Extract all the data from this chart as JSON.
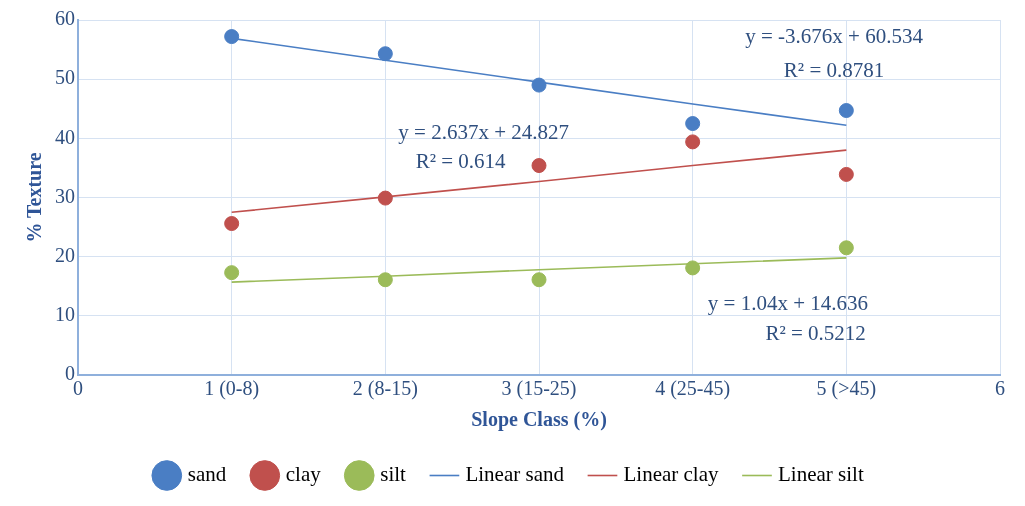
{
  "chart_data": {
    "type": "scatter",
    "xlabel": "Slope Class (%)",
    "ylabel": "% Texture",
    "xlim": [
      0,
      6
    ],
    "xticks": [
      0,
      {
        "value": 1,
        "label": "1 (0-8)"
      },
      {
        "value": 2,
        "label": "2 (8-15)"
      },
      {
        "value": 3,
        "label": "3 (15-25)"
      },
      {
        "value": 4,
        "label": "4 (25-45)"
      },
      {
        "value": 5,
        "label": "5 (>45)"
      },
      6
    ],
    "ylim": [
      0,
      60
    ],
    "yticks": [
      0,
      10,
      20,
      30,
      40,
      50,
      60
    ],
    "grid": true,
    "legend": "bottom",
    "marker": "circle",
    "x": [
      1,
      2,
      3,
      4,
      5
    ],
    "series": [
      {
        "name": "sand",
        "color": "#4a7ec4",
        "values": [
          57.2,
          54.3,
          49.0,
          42.5,
          44.7
        ]
      },
      {
        "name": "clay",
        "color": "#c0504d",
        "values": [
          25.6,
          29.9,
          35.4,
          39.4,
          33.9
        ]
      },
      {
        "name": "silt",
        "color": "#9bbb59",
        "values": [
          17.3,
          16.1,
          16.1,
          18.1,
          21.5
        ]
      },
      {
        "name": "Linear sand",
        "type": "line",
        "marker": "none",
        "color": "#4a7ec4",
        "values": [
          56.9,
          53.2,
          49.5,
          45.8,
          42.2
        ]
      },
      {
        "name": "Linear clay",
        "type": "line",
        "marker": "none",
        "color": "#c0504d",
        "values": [
          27.5,
          30.1,
          32.7,
          35.4,
          38.0
        ]
      },
      {
        "name": "Linear silt",
        "type": "line",
        "marker": "none",
        "color": "#9bbb59",
        "values": [
          15.7,
          16.7,
          17.8,
          18.8,
          19.8
        ]
      }
    ],
    "annotations": [
      "y = -3.676x + 60.534",
      "R² = 0.8781",
      "y = 2.637x + 24.827",
      "R² = 0.614",
      "y = 1.04x + 14.636",
      "R² = 0.5212"
    ]
  }
}
